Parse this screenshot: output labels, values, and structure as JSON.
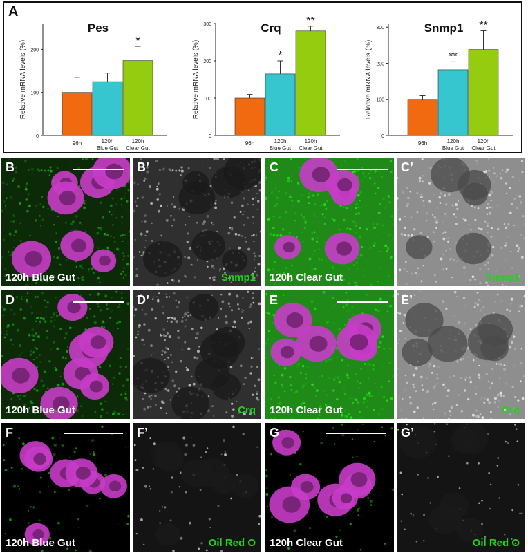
{
  "panel_a_letter": "A",
  "chart_data": [
    {
      "type": "bar",
      "title": "Pes",
      "ylabel": "Relative mRNA levels (%)",
      "categories": [
        "96h",
        "120h\nBlue Gut",
        "120h\nClear Gut"
      ],
      "values": [
        100,
        125,
        174
      ],
      "errors": [
        35,
        20,
        33
      ],
      "significance": [
        "",
        "",
        "*"
      ],
      "yticks": [
        0,
        100,
        200
      ],
      "ylim": [
        0,
        260
      ],
      "colors": [
        "#f26a0f",
        "#35c6cf",
        "#96cc10"
      ]
    },
    {
      "type": "bar",
      "title": "Crq",
      "ylabel": "Relative mRNA levels (%)",
      "categories": [
        "96h",
        "120h\nBlue Gut",
        "120h\nClear Gut"
      ],
      "values": [
        100,
        165,
        280
      ],
      "errors": [
        10,
        35,
        13
      ],
      "significance": [
        "",
        "*",
        "**"
      ],
      "yticks": [
        0,
        100,
        200,
        300
      ],
      "ylim": [
        0,
        300
      ],
      "colors": [
        "#f26a0f",
        "#35c6cf",
        "#96cc10"
      ]
    },
    {
      "type": "bar",
      "title": "Snmp1",
      "ylabel": "Relative mRNA levels (%)",
      "categories": [
        "96h",
        "120h\nBlue Gut",
        "120h\nClear Gut"
      ],
      "values": [
        100,
        182,
        238
      ],
      "errors": [
        10,
        22,
        52
      ],
      "significance": [
        "",
        "**",
        "**"
      ],
      "yticks": [
        0,
        100,
        200,
        300
      ],
      "ylim": [
        0,
        310
      ],
      "colors": [
        "#f26a0f",
        "#35c6cf",
        "#96cc10"
      ]
    }
  ],
  "micrographs": {
    "B": {
      "letter": "B",
      "caption": "120h Blue Gut",
      "marker": ""
    },
    "B2": {
      "letter": "B’",
      "caption": "",
      "marker": "Snmp1"
    },
    "C": {
      "letter": "C",
      "caption": "120h Clear Gut",
      "marker": ""
    },
    "C2": {
      "letter": "C’",
      "caption": "",
      "marker": "Snmp1"
    },
    "D": {
      "letter": "D",
      "caption": "120h Blue Gut",
      "marker": ""
    },
    "D2": {
      "letter": "D’",
      "caption": "",
      "marker": "Crq"
    },
    "E": {
      "letter": "E",
      "caption": "120h Clear Gut",
      "marker": ""
    },
    "E2": {
      "letter": "E’",
      "caption": "",
      "marker": "Crq"
    },
    "F": {
      "letter": "F",
      "caption": "120h Blue Gut",
      "marker": ""
    },
    "F2": {
      "letter": "F’",
      "caption": "",
      "marker": "Oil Red O"
    },
    "G": {
      "letter": "G",
      "caption": "120h Clear Gut",
      "marker": ""
    },
    "G2": {
      "letter": "G’",
      "caption": "",
      "marker": "Oil Red O"
    }
  },
  "colors": {
    "nuclei": "#c83cc8",
    "green_stain": "#22c41c",
    "marker_text": "#22d11c"
  }
}
